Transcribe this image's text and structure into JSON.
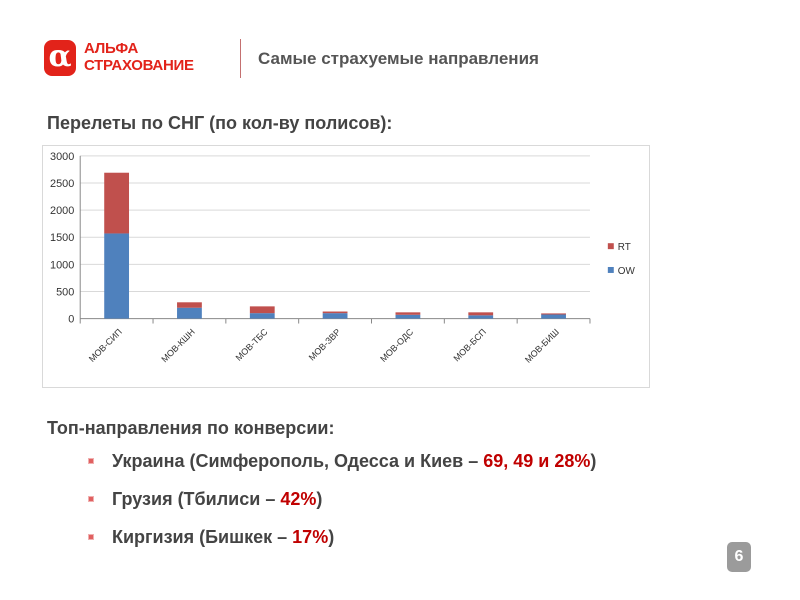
{
  "header": {
    "logo_line1": "АЛЬФА",
    "logo_line2": "СТРАХОВАНИЕ",
    "logo_symbol": "α",
    "title": "Самые страхуемые направления"
  },
  "section1_title": "Перелеты по СНГ (по кол-ву полисов):",
  "chart_data": {
    "type": "bar",
    "stacked": true,
    "categories": [
      "МОВ-СИП",
      "МОВ-КШН",
      "МОВ-ТБС",
      "МОВ-ЗВР",
      "МОВ-ОДС",
      "МОВ-БСП",
      "МОВ-БИШ"
    ],
    "series": [
      {
        "name": "OW",
        "color": "#4f81bd",
        "values": [
          1570,
          200,
          100,
          100,
          70,
          60,
          75
        ]
      },
      {
        "name": "RT",
        "color": "#c0504d",
        "values": [
          1120,
          100,
          125,
          30,
          45,
          55,
          20
        ]
      }
    ],
    "yticks": [
      0,
      500,
      1000,
      1500,
      2000,
      2500,
      3000
    ],
    "ylim": [
      0,
      3000
    ],
    "grid": true,
    "legend": "right"
  },
  "section2_title": "Топ-направления по конверсии:",
  "bullets": [
    {
      "text": "Украина (Симферополь, Одесса и Киев – ",
      "highlight": "69, 49 и 28%",
      "end": ")"
    },
    {
      "text": "Грузия (Тбилиси – ",
      "highlight": "42%",
      "end": ")"
    },
    {
      "text": "Киргизия (Бишкек – ",
      "highlight": "17%",
      "end": ")"
    }
  ],
  "page_number": "6"
}
